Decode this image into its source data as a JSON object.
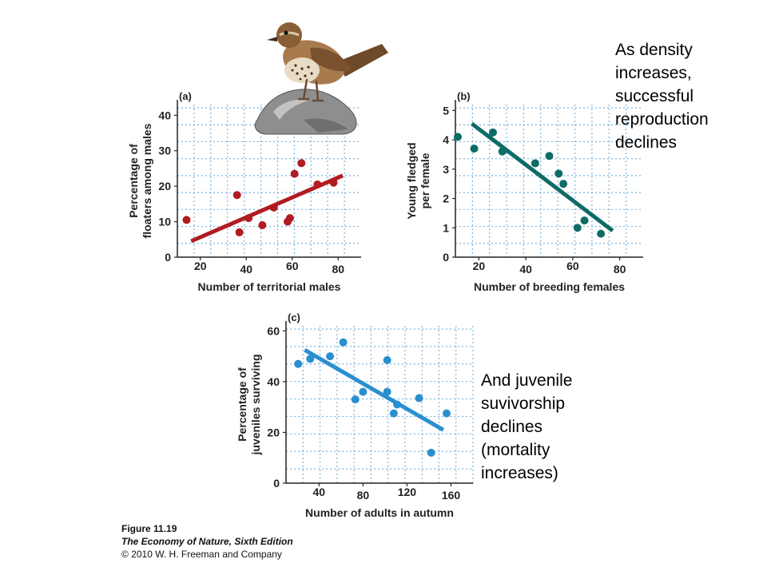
{
  "notes": {
    "top": "As density\nincreases,\nsuccessful\nreproduction\ndeclines",
    "bottom": "And juvenile\nsuvivorship\ndeclines\n(mortality\nincreases)"
  },
  "credit": {
    "figure": "Figure 11.19",
    "book": "The Economy of Nature, Sixth Edition",
    "copyright": "© 2010 W. H. Freeman and Company"
  },
  "colors": {
    "a": "#b01c22",
    "b": "#0e6b66",
    "c": "#2a8fd0",
    "grid": "#7bb3dc"
  },
  "chart_data": [
    {
      "type": "scatter",
      "panel": "(a)",
      "xlabel": "Number of territorial males",
      "ylabel": "Percentage of\nfloaters among males",
      "xlim": [
        10,
        90
      ],
      "ylim": [
        0,
        43
      ],
      "xticks": [
        20,
        40,
        60,
        80
      ],
      "yticks": [
        0,
        10,
        20,
        30,
        40
      ],
      "grid": true,
      "points": [
        [
          14,
          10.5
        ],
        [
          36,
          17.5
        ],
        [
          37,
          7
        ],
        [
          41,
          11
        ],
        [
          47,
          9
        ],
        [
          52,
          14
        ],
        [
          58,
          10
        ],
        [
          59,
          11
        ],
        [
          61,
          23.5
        ],
        [
          64,
          26.5
        ],
        [
          71,
          20.5
        ],
        [
          78,
          21
        ]
      ],
      "trend": [
        [
          16,
          4.5
        ],
        [
          82,
          23
        ]
      ]
    },
    {
      "type": "scatter",
      "panel": "(b)",
      "xlabel": "Number of breeding females",
      "ylabel": "Young fledged\nper female",
      "xlim": [
        10,
        90
      ],
      "ylim": [
        0,
        5.2
      ],
      "xticks": [
        20,
        40,
        60,
        80
      ],
      "yticks": [
        0,
        1,
        2,
        3,
        4,
        5
      ],
      "grid": true,
      "points": [
        [
          11,
          4.1
        ],
        [
          18,
          3.7
        ],
        [
          26,
          4.25
        ],
        [
          30,
          3.6
        ],
        [
          44,
          3.2
        ],
        [
          50,
          3.45
        ],
        [
          54,
          2.85
        ],
        [
          56,
          2.5
        ],
        [
          62,
          1.0
        ],
        [
          65,
          1.25
        ],
        [
          72,
          0.8
        ]
      ],
      "trend": [
        [
          17,
          4.55
        ],
        [
          77,
          0.9
        ]
      ]
    },
    {
      "type": "scatter",
      "panel": "(c)",
      "xlabel": "Number of adults in autumn",
      "ylabel": "Percentage of\njuveniles surviving",
      "xlim": [
        10,
        180
      ],
      "ylim": [
        0,
        62
      ],
      "xticks": [
        40,
        80,
        120,
        160
      ],
      "yticks": [
        0,
        20,
        40,
        60
      ],
      "grid": true,
      "points": [
        [
          21,
          47
        ],
        [
          32,
          49
        ],
        [
          50,
          50
        ],
        [
          62,
          55.5
        ],
        [
          73,
          33
        ],
        [
          80,
          36
        ],
        [
          102,
          48.5
        ],
        [
          102,
          36
        ],
        [
          108,
          27.5
        ],
        [
          111,
          31
        ],
        [
          131,
          33.5
        ],
        [
          142,
          12
        ],
        [
          156,
          27.5
        ]
      ],
      "trend": [
        [
          27,
          52.5
        ],
        [
          153,
          21
        ]
      ]
    }
  ]
}
